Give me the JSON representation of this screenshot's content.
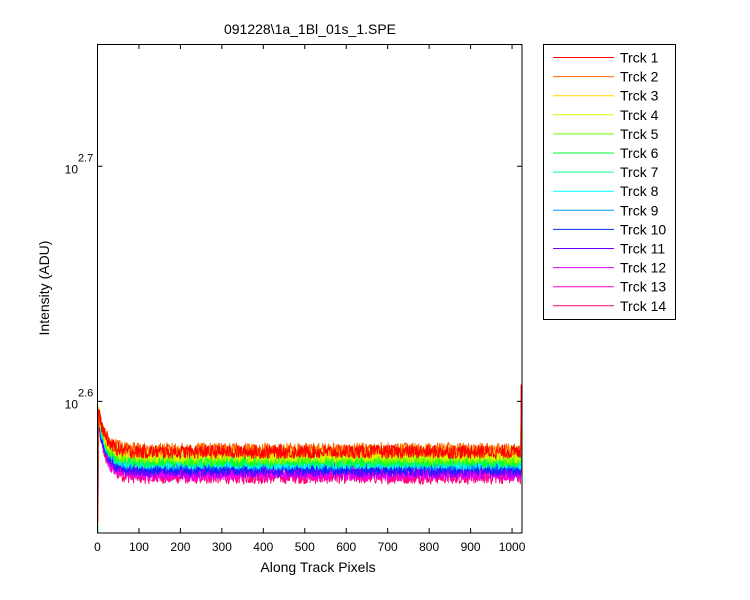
{
  "chart_data": {
    "type": "line",
    "title": "091228\\1a_1Bl_01s_1.SPE",
    "xlabel": "Along Track Pixels",
    "ylabel": "Intensity (ADU)",
    "xlim": [
      0,
      1024
    ],
    "ylim": [
      2.544,
      2.752
    ],
    "yscale": "log10",
    "grid": false,
    "legend_position": "outside-right",
    "x_ticks": [
      "0",
      "100",
      "200",
      "300",
      "400",
      "500",
      "600",
      "700",
      "800",
      "900",
      "1000"
    ],
    "x_tick_values": [
      0,
      100,
      200,
      300,
      400,
      500,
      600,
      700,
      800,
      900,
      1000
    ],
    "y_ticks": [
      {
        "base": "10",
        "exponent": "2.6",
        "value": 2.6
      },
      {
        "base": "10",
        "exponent": "2.7",
        "value": 2.7
      }
    ],
    "series": [
      {
        "name": "Trck 1",
        "color": "#ff0000",
        "start": 2.598,
        "level": 2.5785,
        "noise": 0.003,
        "end": 2.607
      },
      {
        "name": "Trck 2",
        "color": "#ff6a00",
        "start": 2.598,
        "level": 2.5795,
        "noise": 0.003,
        "end": 2.607
      },
      {
        "name": "Trck 3",
        "color": "#ffd500",
        "start": 2.598,
        "level": 2.5785,
        "noise": 0.003,
        "end": 2.606
      },
      {
        "name": "Trck 4",
        "color": "#d4ff00",
        "start": 2.597,
        "level": 2.577,
        "noise": 0.003,
        "end": 2.605
      },
      {
        "name": "Trck 5",
        "color": "#6aff00",
        "start": 2.597,
        "level": 2.576,
        "noise": 0.003,
        "end": 2.604
      },
      {
        "name": "Trck 6",
        "color": "#00ff2b",
        "start": 2.597,
        "level": 2.575,
        "noise": 0.003,
        "end": 2.603
      },
      {
        "name": "Trck 7",
        "color": "#00ff95",
        "start": 2.596,
        "level": 2.5745,
        "noise": 0.003,
        "end": 2.602
      },
      {
        "name": "Trck 8",
        "color": "#00ffff",
        "start": 2.596,
        "level": 2.574,
        "noise": 0.003,
        "end": 2.602
      },
      {
        "name": "Trck 9",
        "color": "#0095ff",
        "start": 2.596,
        "level": 2.5735,
        "noise": 0.003,
        "end": 2.601
      },
      {
        "name": "Trck 10",
        "color": "#002bff",
        "start": 2.595,
        "level": 2.572,
        "noise": 0.003,
        "end": 2.6
      },
      {
        "name": "Trck 11",
        "color": "#6a00ff",
        "start": 2.595,
        "level": 2.5705,
        "noise": 0.003,
        "end": 2.599
      },
      {
        "name": "Trck 12",
        "color": "#d400ff",
        "start": 2.595,
        "level": 2.57,
        "noise": 0.0032,
        "end": 2.599
      },
      {
        "name": "Trck 13",
        "color": "#ff00d4",
        "start": 2.594,
        "level": 2.569,
        "noise": 0.0032,
        "end": 2.598
      },
      {
        "name": "Trck 14",
        "color": "#ff006a",
        "start": 2.594,
        "level": 2.568,
        "noise": 0.0032,
        "end": 2.598
      }
    ]
  }
}
